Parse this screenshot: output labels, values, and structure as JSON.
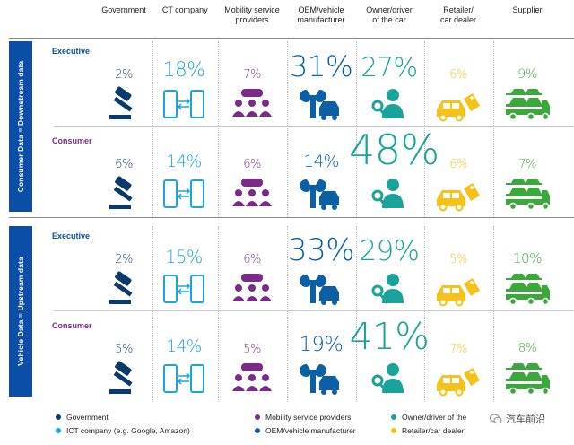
{
  "chart_data": {
    "type": "table",
    "columns": [
      {
        "key": "government",
        "label_lines": [
          "Government"
        ],
        "color": "#0a3a6b",
        "icon": "gavel-icon"
      },
      {
        "key": "ict",
        "label_lines": [
          "ICT company"
        ],
        "color": "#19a6da",
        "icon": "phones-sync-icon"
      },
      {
        "key": "mobility",
        "label_lines": [
          "Mobility service",
          "providers"
        ],
        "color": "#7b2a8c",
        "icon": "people-car-icon"
      },
      {
        "key": "oem",
        "label_lines": [
          "OEM/vehicle",
          "manufacturer"
        ],
        "color": "#0a5fa5",
        "icon": "wrench-car-icon"
      },
      {
        "key": "owner",
        "label_lines": [
          "Owner/driver",
          "of the car"
        ],
        "color": "#1aa39a",
        "icon": "person-key-icon"
      },
      {
        "key": "retailer",
        "label_lines": [
          "Retailer/",
          "car dealer"
        ],
        "color": "#f4c21a",
        "icon": "car-tag-icon"
      },
      {
        "key": "supplier",
        "label_lines": [
          "Supplier"
        ],
        "color": "#3aa83a",
        "icon": "car-transporter-icon"
      }
    ],
    "sections": [
      {
        "title": "Consumer Data = Downstream data",
        "rows": [
          {
            "label": "Executive",
            "label_color": "#0a4ea8",
            "values": [
              2,
              18,
              7,
              31,
              27,
              6,
              9
            ]
          },
          {
            "label": "Consumer",
            "label_color": "#7b2a8c",
            "values": [
              6,
              14,
              6,
              14,
              48,
              6,
              7
            ]
          }
        ]
      },
      {
        "title": "Vehicle Data = Upstream data",
        "rows": [
          {
            "label": "Executive",
            "label_color": "#0a4ea8",
            "values": [
              2,
              15,
              6,
              33,
              29,
              5,
              10
            ]
          },
          {
            "label": "Consumer",
            "label_color": "#7b2a8c",
            "values": [
              5,
              14,
              5,
              19,
              41,
              7,
              8
            ]
          }
        ]
      }
    ],
    "value_unit": "%",
    "legend": [
      {
        "label": "Government",
        "color": "#0a3a6b"
      },
      {
        "label": "Mobility service providers",
        "color": "#7b2a8c"
      },
      {
        "label": "Owner/driver of the",
        "color": "#1aa39a"
      },
      {
        "label": "ICT company (e.g. Google, Amazon)",
        "color": "#19a6da"
      },
      {
        "label": "OEM/vehicle manufacturer",
        "color": "#0a5fa5"
      },
      {
        "label": "Retailer/car dealer",
        "color": "#f4c21a"
      }
    ]
  },
  "watermark": {
    "text": "汽车前沿",
    "icon": "wechat-icon"
  }
}
